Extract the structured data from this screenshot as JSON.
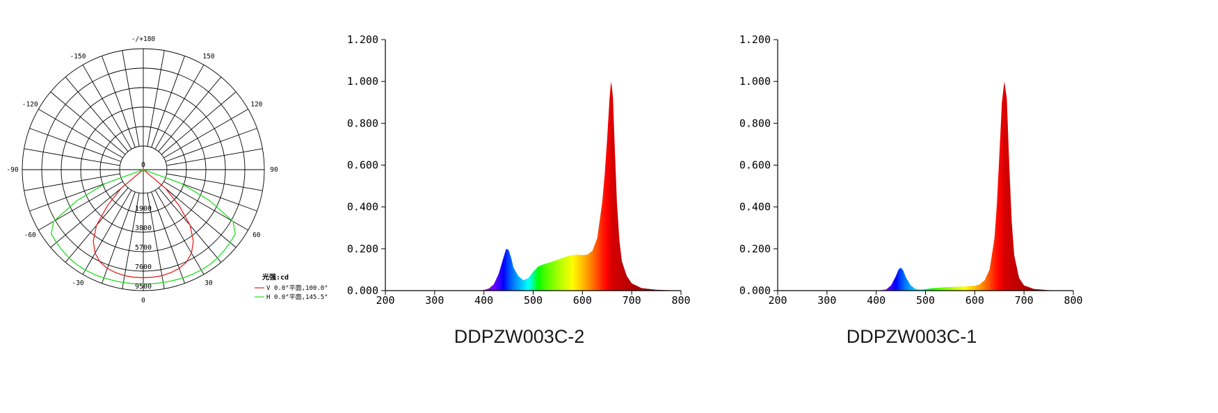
{
  "colors": {
    "axis": "#000000",
    "v_curve": "#e32222",
    "h_curve": "#22dd22",
    "caption": "#1a1a1a"
  },
  "chart_data": [
    {
      "type": "polar",
      "angle_labels": [
        {
          "angle": 180,
          "text": "-/+180"
        },
        {
          "angle": 150,
          "text": "150"
        },
        {
          "angle": -150,
          "text": "-150"
        },
        {
          "angle": 120,
          "text": "120"
        },
        {
          "angle": -120,
          "text": "-120"
        },
        {
          "angle": 90,
          "text": "90"
        },
        {
          "angle": -90,
          "text": "-90"
        },
        {
          "angle": 60,
          "text": "60"
        },
        {
          "angle": -60,
          "text": "-60"
        },
        {
          "angle": 30,
          "text": "30"
        },
        {
          "angle": -30,
          "text": "-30"
        },
        {
          "angle": 0,
          "text": "0"
        }
      ],
      "center_label": "0",
      "radial_ticks": [
        1900,
        3800,
        5700,
        7600,
        9500
      ],
      "radial_tick_labels": [
        "1900",
        "3800",
        "5700",
        "7600",
        "9500"
      ],
      "rmax": 9500,
      "unit_label": "光强:cd",
      "legend": [
        {
          "marker": "V",
          "text": "0.0°平面,100.0°",
          "color": "#e32222"
        },
        {
          "marker": "H",
          "text": "0.0°平面,145.5°",
          "color": "#22dd22"
        }
      ],
      "series": [
        {
          "color": "#e32222",
          "angles": [
            -50,
            -45,
            -40,
            -35,
            -30,
            -25,
            -20,
            -15,
            -10,
            -5,
            0,
            5,
            10,
            15,
            20,
            25,
            30,
            35,
            40,
            45,
            50
          ],
          "values": [
            500,
            2600,
            4800,
            6200,
            7100,
            7650,
            7950,
            8100,
            8200,
            8230,
            8240,
            8230,
            8200,
            8100,
            7950,
            7650,
            7100,
            6200,
            4800,
            2600,
            500
          ]
        },
        {
          "color": "#22dd22",
          "angles": [
            -72.75,
            -70,
            -65,
            -60,
            -55,
            -50,
            -45,
            -40,
            -35,
            -30,
            -25,
            -20,
            -15,
            -10,
            -5,
            0,
            5,
            10,
            15,
            20,
            25,
            30,
            35,
            40,
            45,
            50,
            55,
            60,
            65,
            70,
            72.75
          ],
          "values": [
            0,
            1600,
            4800,
            7800,
            8650,
            8750,
            8850,
            8950,
            9000,
            9000,
            8980,
            8950,
            8900,
            8880,
            8860,
            8850,
            8860,
            8880,
            8900,
            8950,
            8980,
            9000,
            9000,
            8950,
            8850,
            8750,
            8650,
            7800,
            4800,
            1600,
            0
          ]
        }
      ]
    },
    {
      "type": "area",
      "title": "DDPZW003C-2",
      "xlim": [
        200,
        800
      ],
      "ylim": [
        0,
        1.2
      ],
      "xticks": [
        "200",
        "300",
        "400",
        "500",
        "600",
        "700",
        "800"
      ],
      "yticks": [
        "0.000",
        "0.200",
        "0.400",
        "0.600",
        "0.800",
        "1.000",
        "1.200"
      ],
      "x": [
        380,
        400,
        410,
        420,
        430,
        440,
        445,
        450,
        455,
        460,
        470,
        480,
        490,
        500,
        510,
        520,
        530,
        540,
        550,
        560,
        570,
        580,
        590,
        600,
        610,
        620,
        630,
        640,
        645,
        650,
        655,
        658,
        660,
        662,
        665,
        670,
        675,
        680,
        690,
        700,
        720,
        750,
        800
      ],
      "y": [
        0,
        0.003,
        0.01,
        0.03,
        0.08,
        0.16,
        0.2,
        0.195,
        0.16,
        0.11,
        0.07,
        0.05,
        0.06,
        0.09,
        0.115,
        0.125,
        0.132,
        0.14,
        0.148,
        0.157,
        0.165,
        0.17,
        0.172,
        0.17,
        0.172,
        0.19,
        0.25,
        0.42,
        0.55,
        0.72,
        0.92,
        1.0,
        0.97,
        0.92,
        0.72,
        0.42,
        0.24,
        0.14,
        0.07,
        0.035,
        0.012,
        0.004,
        0
      ]
    },
    {
      "type": "area",
      "title": "DDPZW003C-1",
      "xlim": [
        200,
        800
      ],
      "ylim": [
        0,
        1.2
      ],
      "xticks": [
        "200",
        "300",
        "400",
        "500",
        "600",
        "700",
        "800"
      ],
      "yticks": [
        "0.000",
        "0.200",
        "0.400",
        "0.600",
        "0.800",
        "1.000",
        "1.200"
      ],
      "x": [
        400,
        420,
        430,
        440,
        445,
        450,
        455,
        460,
        470,
        480,
        490,
        500,
        520,
        540,
        560,
        580,
        600,
        610,
        620,
        630,
        640,
        645,
        650,
        655,
        660,
        665,
        670,
        675,
        680,
        690,
        700,
        720,
        750,
        800
      ],
      "y": [
        0,
        0.005,
        0.025,
        0.07,
        0.1,
        0.11,
        0.095,
        0.065,
        0.025,
        0.008,
        0.005,
        0.008,
        0.013,
        0.016,
        0.018,
        0.02,
        0.023,
        0.03,
        0.05,
        0.1,
        0.25,
        0.42,
        0.65,
        0.9,
        1.0,
        0.92,
        0.6,
        0.33,
        0.17,
        0.06,
        0.025,
        0.008,
        0.002,
        0
      ]
    }
  ]
}
